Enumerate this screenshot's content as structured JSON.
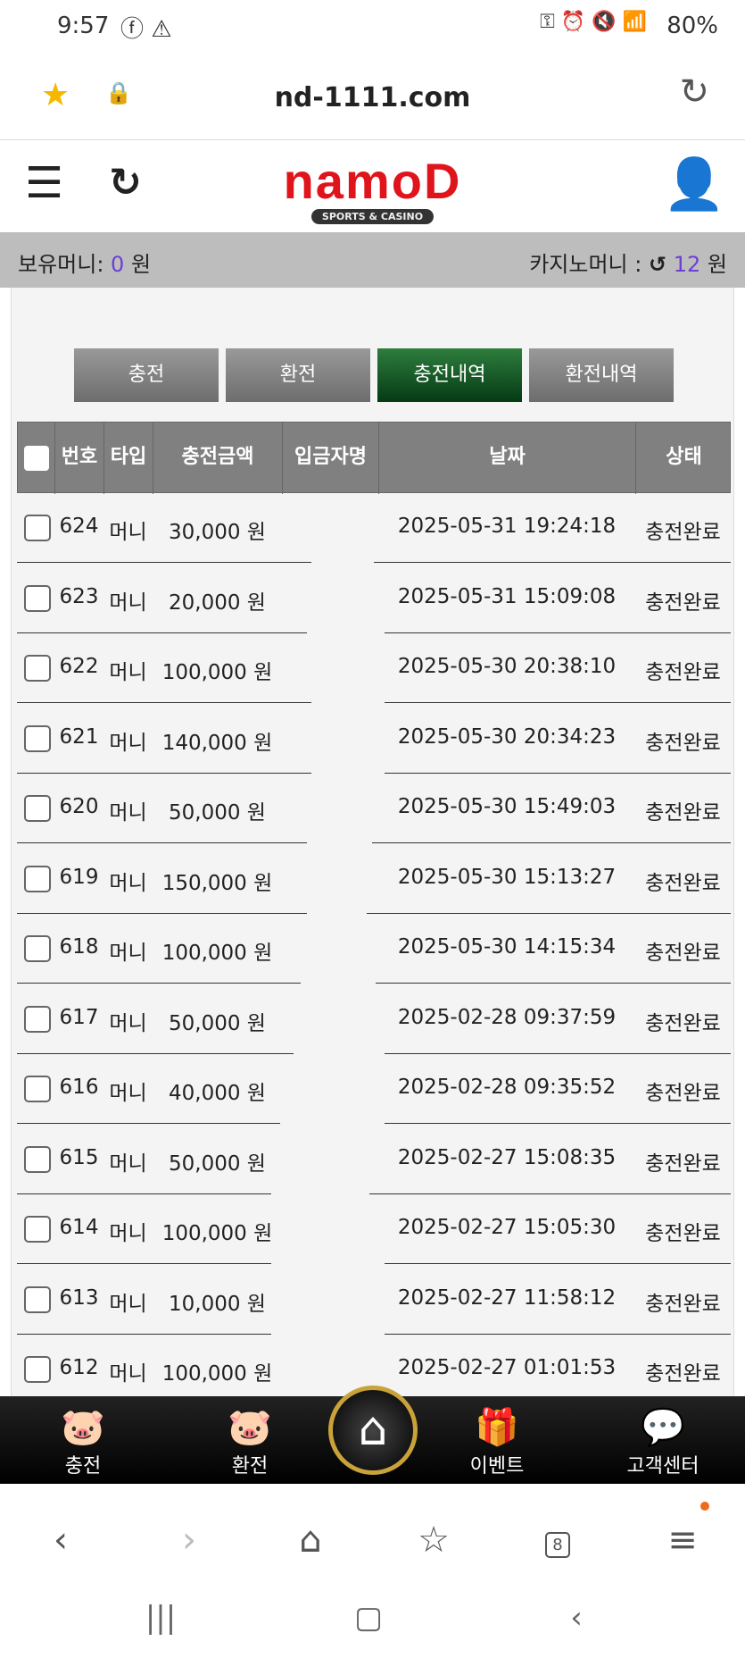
{
  "status": {
    "time": "9:57",
    "battery": "80%"
  },
  "browser": {
    "url": "nd-1111.com",
    "tab_count": "8"
  },
  "header": {
    "logo_main": "namoD",
    "logo_sub": "SPORTS & CASINO"
  },
  "balance": {
    "label": "보유머니:",
    "value": "0",
    "unit": "원",
    "casino_label": "카지노머니 :",
    "casino_value": "12",
    "casino_unit": "원"
  },
  "tabs": [
    {
      "label": "충전"
    },
    {
      "label": "환전"
    },
    {
      "label": "충전내역",
      "active": true
    },
    {
      "label": "환전내역"
    }
  ],
  "table": {
    "headers": [
      "번호",
      "타입",
      "충전금액",
      "입금자명",
      "날짜",
      "상태"
    ],
    "rows": [
      {
        "no": "624",
        "type": "머니",
        "amount": "30,000 원",
        "date": "2025-05-31 19:24:18",
        "status": "충전완료"
      },
      {
        "no": "623",
        "type": "머니",
        "amount": "20,000 원",
        "date": "2025-05-31 15:09:08",
        "status": "충전완료"
      },
      {
        "no": "622",
        "type": "머니",
        "amount": "100,000 원",
        "date": "2025-05-30 20:38:10",
        "status": "충전완료"
      },
      {
        "no": "621",
        "type": "머니",
        "amount": "140,000 원",
        "date": "2025-05-30 20:34:23",
        "status": "충전완료"
      },
      {
        "no": "620",
        "type": "머니",
        "amount": "50,000 원",
        "date": "2025-05-30 15:49:03",
        "status": "충전완료"
      },
      {
        "no": "619",
        "type": "머니",
        "amount": "150,000 원",
        "date": "2025-05-30 15:13:27",
        "status": "충전완료"
      },
      {
        "no": "618",
        "type": "머니",
        "amount": "100,000 원",
        "date": "2025-05-30 14:15:34",
        "status": "충전완료"
      },
      {
        "no": "617",
        "type": "머니",
        "amount": "50,000 원",
        "date": "2025-02-28 09:37:59",
        "status": "충전완료"
      },
      {
        "no": "616",
        "type": "머니",
        "amount": "40,000 원",
        "date": "2025-02-28 09:35:52",
        "status": "충전완료"
      },
      {
        "no": "615",
        "type": "머니",
        "amount": "50,000 원",
        "date": "2025-02-27 15:08:35",
        "status": "충전완료"
      },
      {
        "no": "614",
        "type": "머니",
        "amount": "100,000 원",
        "date": "2025-02-27 15:05:30",
        "status": "충전완료"
      },
      {
        "no": "613",
        "type": "머니",
        "amount": "10,000 원",
        "date": "2025-02-27 11:58:12",
        "status": "충전완료"
      },
      {
        "no": "612",
        "type": "머니",
        "amount": "100,000 원",
        "date": "2025-02-27 01:01:53",
        "status": "충전완료"
      }
    ]
  },
  "bottom_nav": [
    {
      "label": "충전",
      "icon": "piggy-plus-icon"
    },
    {
      "label": "환전",
      "icon": "piggy-minus-icon"
    },
    {
      "label": "이벤트",
      "icon": "gift-icon"
    },
    {
      "label": "고객센터",
      "icon": "headset-chat-icon"
    }
  ]
}
